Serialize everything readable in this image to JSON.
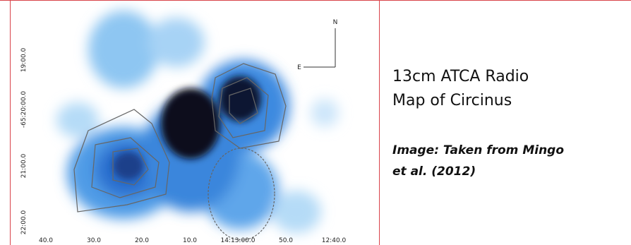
{
  "slide": {
    "title": "13cm ATCA Radio Map of Circinus",
    "caption": "Image: Taken from Mingo et al. (2012)"
  },
  "figure": {
    "x_labels": [
      "40.0",
      "30.0",
      "20.0",
      "10.0",
      "14:13:00.0",
      "50.0",
      "12:40.0"
    ],
    "y_labels": [
      "19:00.0",
      "-65:20:00.0",
      "21:00.0",
      "22:00.0"
    ],
    "compass": {
      "north": "N",
      "east": "E"
    }
  }
}
